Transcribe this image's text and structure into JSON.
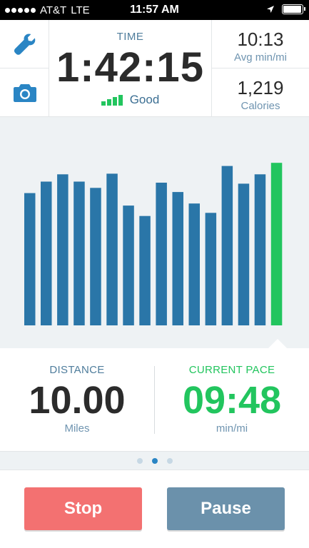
{
  "status_bar": {
    "carrier": "AT&T",
    "network": "LTE",
    "time": "11:57 AM",
    "icons": [
      "signal-dots",
      "location-arrow-icon",
      "battery-icon"
    ]
  },
  "header": {
    "tools": [
      {
        "icon": "wrench-icon"
      },
      {
        "icon": "camera-icon"
      }
    ],
    "time_label": "TIME",
    "time_value": "1:42:15",
    "gps_quality": "Good",
    "avg_pace": {
      "value": "10:13",
      "label": "Avg min/mi"
    },
    "calories": {
      "value": "1,219",
      "label": "Calories"
    }
  },
  "chart_data": {
    "type": "bar",
    "title": "",
    "values": [
      0.635,
      0.69,
      0.725,
      0.69,
      0.66,
      0.728,
      0.575,
      0.525,
      0.685,
      0.64,
      0.585,
      0.54,
      0.765,
      0.68,
      0.725,
      0.78
    ],
    "highlight_index": 15,
    "bar_color": "#2a76a8",
    "highlight_color": "#22c55e",
    "ylim": [
      0,
      1
    ]
  },
  "metrics": {
    "distance": {
      "label": "DISTANCE",
      "value": "10.00",
      "unit": "Miles"
    },
    "current_pace": {
      "label": "CURRENT PACE",
      "value": "09:48",
      "unit": "min/mi"
    }
  },
  "pager": {
    "count": 3,
    "active": 1
  },
  "buttons": {
    "stop_label": "Stop",
    "pause_label": "Pause"
  },
  "colors": {
    "accent_blue": "#2a85c4",
    "green": "#22c55e",
    "stop": "#f37171",
    "pause": "#6b91ab",
    "label_blue": "#4f7d9c",
    "dark_text": "#2b2b2b"
  }
}
